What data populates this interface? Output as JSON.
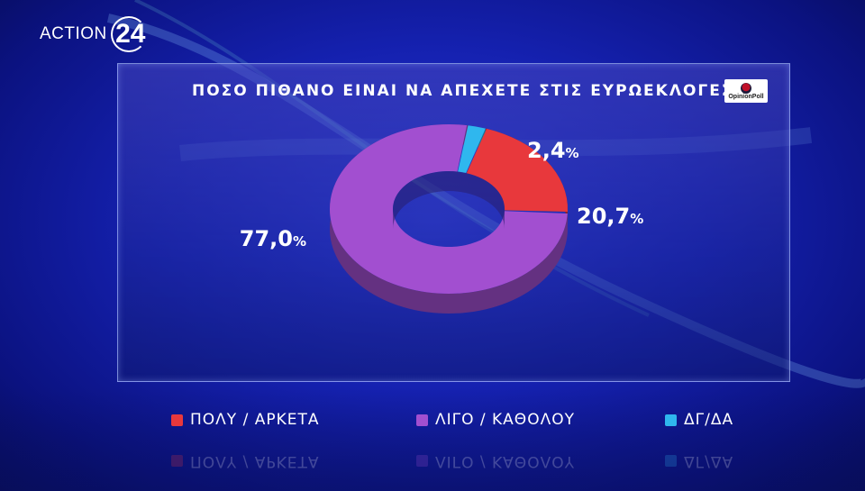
{
  "brand": {
    "text": "ACTION",
    "number": "24"
  },
  "poll_logo": {
    "text": "OpinionPoll"
  },
  "chart_data": {
    "type": "pie",
    "title": "ΠΟΣΟ ΠΙΘΑΝΟ ΕΙΝΑΙ ΝΑ ΑΠΕΧΕΤΕ ΣΤΙΣ ΕΥΡΩΕΚΛΟΓΕΣ;",
    "style": "donut-3d",
    "slices": [
      {
        "label": "ΠΟΛΥ / ΑΡΚΕΤΑ",
        "value": 20.7,
        "value_label": "20,7",
        "color": "#e8383c"
      },
      {
        "label": "ΛΙΓΟ / ΚΑΘΟΛΟΥ",
        "value": 77.0,
        "value_label": "77,0",
        "color": "#a24fd0"
      },
      {
        "label": "ΔΓ/ΔΑ",
        "value": 2.4,
        "value_label": "2,4",
        "color": "#2fb7ee"
      }
    ],
    "unit": "%",
    "legend_position": "bottom"
  },
  "legend": [
    {
      "label": "ΠΟΛΥ  /  ΑΡΚΕΤΑ",
      "color": "#e8383c"
    },
    {
      "label": "ΛΙΓΟ  /  ΚΑΘΟΛΟΥ",
      "color": "#a24fd0"
    },
    {
      "label": "ΔΓ/ΔΑ",
      "color": "#2fb7ee"
    }
  ]
}
